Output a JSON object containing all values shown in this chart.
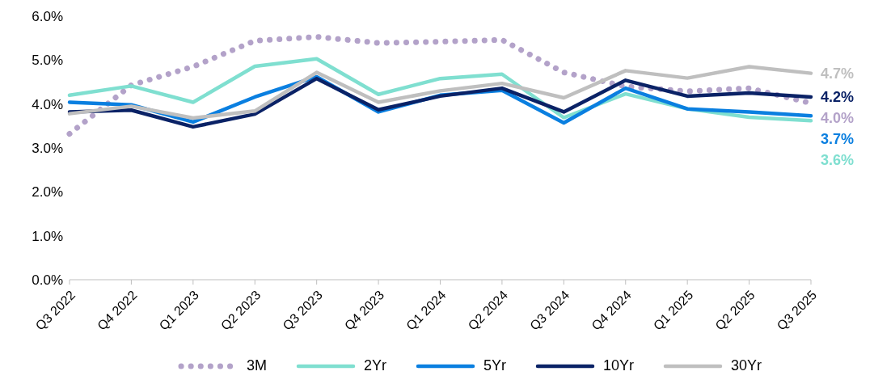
{
  "chart_data": {
    "type": "line",
    "categories": [
      "Q3 2022",
      "Q4 2022",
      "Q1 2023",
      "Q2 2023",
      "Q3 2023",
      "Q4 2023",
      "Q1 2024",
      "Q2 2024",
      "Q3 2024",
      "Q4 2024",
      "Q1 2025",
      "Q2 2025",
      "Q3 2025"
    ],
    "ylim": [
      0,
      6
    ],
    "yticks": [
      {
        "value": 0,
        "label": "0.0%"
      },
      {
        "value": 1,
        "label": "1.0%"
      },
      {
        "value": 2,
        "label": "2.0%"
      },
      {
        "value": 3,
        "label": "3.0%"
      },
      {
        "value": 4,
        "label": "4.0%"
      },
      {
        "value": 5,
        "label": "5.0%"
      },
      {
        "value": 6,
        "label": "6.0%"
      }
    ],
    "grid": false,
    "legend": "bottom",
    "marker": "none",
    "series": [
      {
        "name": "3M",
        "color": "#b3a2c9",
        "line_style": "dotted",
        "values": [
          3.32,
          4.43,
          4.85,
          5.44,
          5.53,
          5.39,
          5.42,
          5.46,
          4.72,
          4.4,
          4.29,
          4.36,
          4.02
        ],
        "value_labels": [
          null,
          null,
          null,
          null,
          null,
          null,
          null,
          null,
          null,
          null,
          null,
          null,
          "4.0%"
        ]
      },
      {
        "name": "2Yr",
        "color": "#7fdfd0",
        "line_style": "solid",
        "values": [
          4.2,
          4.41,
          4.04,
          4.86,
          5.03,
          4.22,
          4.58,
          4.68,
          3.69,
          4.23,
          3.89,
          3.7,
          3.62
        ],
        "value_labels": [
          null,
          null,
          null,
          null,
          null,
          null,
          null,
          null,
          null,
          null,
          null,
          null,
          "3.6%"
        ]
      },
      {
        "name": "5Yr",
        "color": "#0a7fe0",
        "line_style": "solid",
        "values": [
          4.04,
          3.98,
          3.59,
          4.16,
          4.62,
          3.82,
          4.2,
          4.31,
          3.57,
          4.36,
          3.89,
          3.82,
          3.73
        ],
        "value_labels": [
          null,
          null,
          null,
          null,
          null,
          null,
          null,
          null,
          null,
          null,
          null,
          null,
          "3.7%"
        ]
      },
      {
        "name": "10Yr",
        "color": "#0a2266",
        "line_style": "solid",
        "values": [
          3.82,
          3.86,
          3.48,
          3.77,
          4.58,
          3.87,
          4.18,
          4.36,
          3.82,
          4.54,
          4.18,
          4.25,
          4.16
        ],
        "value_labels": [
          null,
          null,
          null,
          null,
          null,
          null,
          null,
          null,
          null,
          null,
          null,
          null,
          "4.2%"
        ]
      },
      {
        "name": "30Yr",
        "color": "#bfbfbf",
        "line_style": "solid",
        "values": [
          3.78,
          3.95,
          3.68,
          3.84,
          4.72,
          4.04,
          4.3,
          4.47,
          4.14,
          4.76,
          4.59,
          4.85,
          4.7
        ],
        "value_labels": [
          null,
          null,
          null,
          null,
          null,
          null,
          null,
          null,
          null,
          null,
          null,
          null,
          "4.7%"
        ]
      }
    ]
  }
}
